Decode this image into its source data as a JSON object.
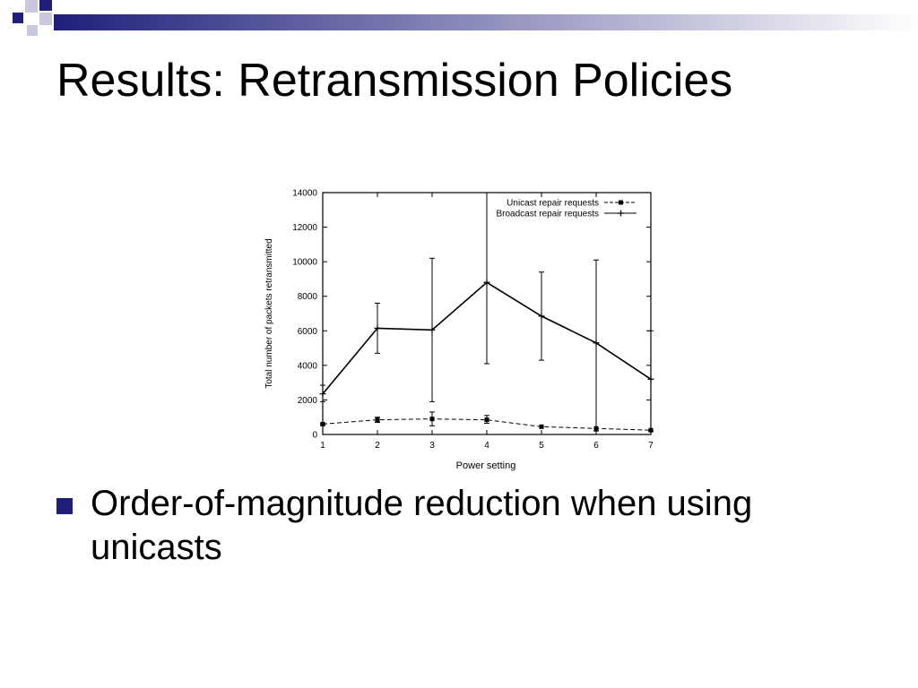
{
  "slide": {
    "title": "Results: Retransmission Policies",
    "bullets": [
      {
        "text": "Order-of-magnitude reduction when using unicasts"
      }
    ]
  },
  "colors": {
    "accent": "#1f1f7a",
    "accent_light": "#c8c8de",
    "text": "#000000"
  },
  "icons": {
    "bullet": "filled-square-bullet"
  },
  "chart_data": {
    "type": "line",
    "xlabel": "Power setting",
    "ylabel": "Total number of packets retransmitted",
    "x": [
      1,
      2,
      3,
      4,
      5,
      6,
      7
    ],
    "xlim": [
      1,
      7
    ],
    "ylim": [
      0,
      14000
    ],
    "xticks": [
      "1",
      "2",
      "3",
      "4",
      "5",
      "6",
      "7"
    ],
    "yticks": [
      "0",
      "2000",
      "4000",
      "6000",
      "8000",
      "10000",
      "12000",
      "14000"
    ],
    "grid": false,
    "legend_position": "top-right",
    "series": [
      {
        "name": "Unicast repair requests",
        "style": "dashed",
        "marker": "square",
        "values": [
          600,
          850,
          900,
          850,
          450,
          350,
          250
        ],
        "error_low": [
          550,
          700,
          500,
          650,
          450,
          350,
          250
        ],
        "error_high": [
          650,
          1000,
          1300,
          1100,
          450,
          350,
          250
        ]
      },
      {
        "name": "Broadcast repair requests",
        "style": "solid",
        "marker": "plus",
        "values": [
          2350,
          6150,
          6050,
          8800,
          6850,
          5300,
          3200
        ],
        "error_low": [
          1900,
          4700,
          1900,
          4100,
          4300,
          200,
          200
        ],
        "error_high": [
          2850,
          7600,
          10200,
          14000,
          9400,
          10100,
          6000
        ]
      }
    ]
  }
}
